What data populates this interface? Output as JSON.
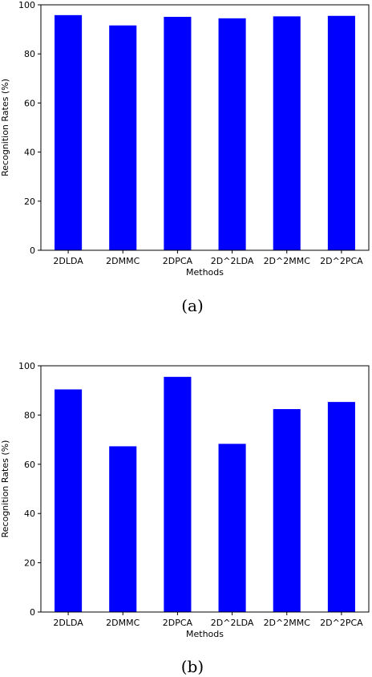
{
  "chart_data": [
    {
      "type": "bar",
      "categories": [
        "2DLDA",
        "2DMMC",
        "2DPCA",
        "2D^2LDA",
        "2D^2MMC",
        "2D^2PCA"
      ],
      "values": [
        95.8,
        91.6,
        95.1,
        94.5,
        95.3,
        95.5
      ],
      "xlabel": "Methods",
      "ylabel": "Recognition Rates (%)",
      "ylim": [
        0,
        100
      ],
      "yticks": [
        0,
        20,
        40,
        60,
        80,
        100
      ],
      "bar_color": "#0000ff",
      "caption": "(a)",
      "grid": false
    },
    {
      "type": "bar",
      "categories": [
        "2DLDA",
        "2DMMC",
        "2DPCA",
        "2D^2LDA",
        "2D^2MMC",
        "2D^2PCA"
      ],
      "values": [
        90.4,
        67.3,
        95.5,
        68.3,
        82.4,
        85.3
      ],
      "xlabel": "Methods",
      "ylabel": "Recognition Rates (%)",
      "ylim": [
        0,
        100
      ],
      "yticks": [
        0,
        20,
        40,
        60,
        80,
        100
      ],
      "bar_color": "#0000ff",
      "caption": "(b)",
      "grid": false
    }
  ]
}
